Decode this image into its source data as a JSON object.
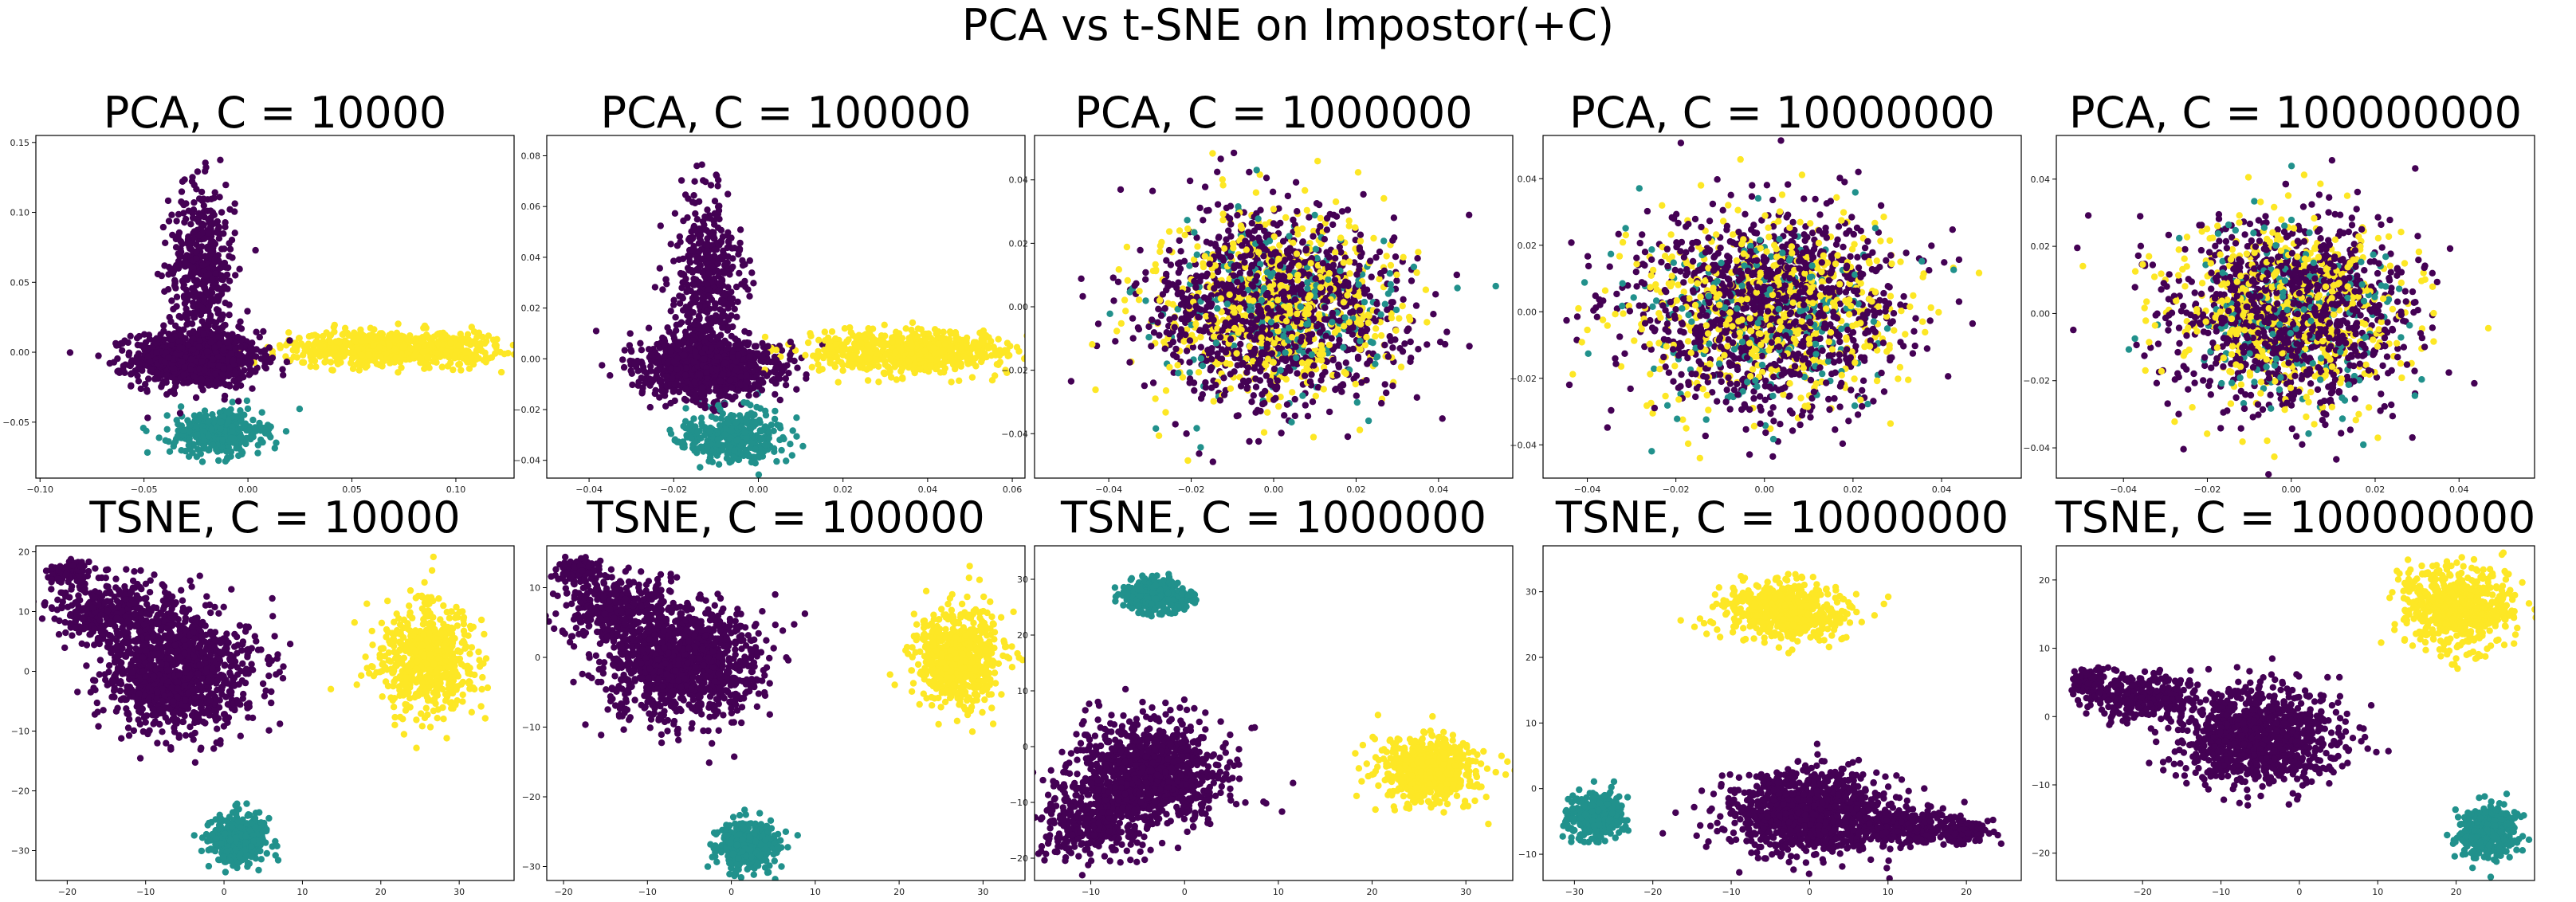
{
  "suptitle": "PCA vs t-SNE on Impostor(+C)",
  "colors": {
    "class0": "#440154",
    "class1": "#21918c",
    "class2": "#fde725"
  },
  "chart_data": [
    {
      "type": "scatter",
      "title": "PCA, C = 10000",
      "xlim": [
        -0.102,
        0.128
      ],
      "ylim": [
        -0.09,
        0.155
      ],
      "xticks": [
        -0.1,
        -0.05,
        0.0,
        0.05,
        0.1
      ],
      "yticks": [
        -0.05,
        0.0,
        0.05,
        0.1,
        0.15
      ],
      "xtick_labels": [
        "−0.10",
        "−0.05",
        "0.00",
        "0.05",
        "0.10"
      ],
      "ytick_labels": [
        "−0.05",
        "0.00",
        "0.05",
        "0.10",
        "0.15"
      ],
      "clusters": [
        {
          "class": 0,
          "n": 1000,
          "cx": -0.025,
          "cy": -0.005,
          "sx": 0.015,
          "sy": 0.01
        },
        {
          "class": 0,
          "n": 450,
          "cx": -0.022,
          "cy": 0.06,
          "sx": 0.008,
          "sy": 0.03
        },
        {
          "class": 2,
          "n": 750,
          "cx": 0.07,
          "cy": 0.003,
          "sx": 0.025,
          "sy": 0.006
        },
        {
          "class": 1,
          "n": 380,
          "cx": -0.015,
          "cy": -0.058,
          "sx": 0.011,
          "sy": 0.008
        }
      ]
    },
    {
      "type": "scatter",
      "title": "PCA, C = 100000",
      "xlim": [
        -0.05,
        0.063
      ],
      "ylim": [
        -0.047,
        0.088
      ],
      "xticks": [
        -0.04,
        -0.02,
        0.0,
        0.02,
        0.04,
        0.06
      ],
      "yticks": [
        -0.04,
        -0.02,
        0.0,
        0.02,
        0.04,
        0.06,
        0.08
      ],
      "xtick_labels": [
        "−0.04",
        "−0.02",
        "0.00",
        "0.02",
        "0.04",
        "0.06"
      ],
      "ytick_labels": [
        "−0.04",
        "−0.02",
        "0.00",
        "0.02",
        "0.04",
        "0.06",
        "0.08"
      ],
      "clusters": [
        {
          "class": 0,
          "n": 1000,
          "cx": -0.012,
          "cy": -0.003,
          "sx": 0.008,
          "sy": 0.006
        },
        {
          "class": 0,
          "n": 450,
          "cx": -0.012,
          "cy": 0.032,
          "sx": 0.004,
          "sy": 0.016
        },
        {
          "class": 2,
          "n": 750,
          "cx": 0.035,
          "cy": 0.003,
          "sx": 0.012,
          "sy": 0.004
        },
        {
          "class": 1,
          "n": 380,
          "cx": -0.006,
          "cy": -0.031,
          "sx": 0.006,
          "sy": 0.005
        }
      ]
    },
    {
      "type": "scatter",
      "title": "PCA, C = 1000000",
      "xlim": [
        -0.058,
        0.058
      ],
      "ylim": [
        -0.054,
        0.054
      ],
      "xticks": [
        -0.04,
        -0.02,
        0.0,
        0.02,
        0.04
      ],
      "yticks": [
        -0.04,
        -0.02,
        0.0,
        0.02,
        0.04
      ],
      "xtick_labels": [
        "−0.04",
        "−0.02",
        "0.00",
        "0.02",
        "0.04"
      ],
      "ytick_labels": [
        "−0.04",
        "−0.02",
        "0.00",
        "0.02",
        "0.04"
      ],
      "clusters": [
        {
          "class": 0,
          "n": 1100,
          "cx": 0,
          "cy": 0,
          "sx": 0.015,
          "sy": 0.015
        },
        {
          "class": 2,
          "n": 600,
          "cx": 0,
          "cy": 0,
          "sx": 0.015,
          "sy": 0.015
        },
        {
          "class": 1,
          "n": 250,
          "cx": 0,
          "cy": 0,
          "sx": 0.014,
          "sy": 0.014
        }
      ]
    },
    {
      "type": "scatter",
      "title": "PCA, C = 10000000",
      "xlim": [
        -0.05,
        0.058
      ],
      "ylim": [
        -0.05,
        0.053
      ],
      "xticks": [
        -0.04,
        -0.02,
        0.0,
        0.02,
        0.04
      ],
      "yticks": [
        -0.04,
        -0.02,
        0.0,
        0.02,
        0.04
      ],
      "xtick_labels": [
        "−0.04",
        "−0.02",
        "0.00",
        "0.02",
        "0.04"
      ],
      "ytick_labels": [
        "−0.04",
        "−0.02",
        "0.00",
        "0.02",
        "0.04"
      ],
      "clusters": [
        {
          "class": 0,
          "n": 1100,
          "cx": 0,
          "cy": 0,
          "sx": 0.015,
          "sy": 0.015
        },
        {
          "class": 2,
          "n": 600,
          "cx": 0,
          "cy": 0,
          "sx": 0.015,
          "sy": 0.015
        },
        {
          "class": 1,
          "n": 250,
          "cx": 0,
          "cy": 0,
          "sx": 0.014,
          "sy": 0.014
        }
      ]
    },
    {
      "type": "scatter",
      "title": "PCA, C = 100000000",
      "xlim": [
        -0.056,
        0.058
      ],
      "ylim": [
        -0.049,
        0.053
      ],
      "xticks": [
        -0.04,
        -0.02,
        0.0,
        0.02,
        0.04
      ],
      "yticks": [
        -0.04,
        -0.02,
        0.0,
        0.02,
        0.04
      ],
      "xtick_labels": [
        "−0.04",
        "−0.02",
        "0.00",
        "0.02",
        "0.04"
      ],
      "ytick_labels": [
        "−0.04",
        "−0.02",
        "0.00",
        "0.02",
        "0.04"
      ],
      "clusters": [
        {
          "class": 0,
          "n": 1100,
          "cx": 0,
          "cy": 0,
          "sx": 0.014,
          "sy": 0.014
        },
        {
          "class": 2,
          "n": 600,
          "cx": 0,
          "cy": 0,
          "sx": 0.014,
          "sy": 0.014
        },
        {
          "class": 1,
          "n": 250,
          "cx": 0,
          "cy": 0,
          "sx": 0.013,
          "sy": 0.013
        }
      ]
    },
    {
      "type": "scatter",
      "title": "TSNE, C = 10000",
      "xlim": [
        -24,
        37
      ],
      "ylim": [
        -35,
        21
      ],
      "xticks": [
        -20,
        -10,
        0,
        10,
        20,
        30
      ],
      "yticks": [
        -30,
        -20,
        -10,
        0,
        10,
        20
      ],
      "xtick_labels": [
        "−20",
        "−10",
        "0",
        "10",
        "20",
        "30"
      ],
      "ytick_labels": [
        "−30",
        "−20",
        "−10",
        "0",
        "10",
        "20"
      ],
      "clusters": [
        {
          "class": 0,
          "n": 1200,
          "cx": -6,
          "cy": 0,
          "sx": 4.5,
          "sy": 5
        },
        {
          "class": 0,
          "n": 350,
          "cx": -15,
          "cy": 10,
          "sx": 3.5,
          "sy": 3
        },
        {
          "class": 0,
          "n": 120,
          "cx": -20,
          "cy": 16.5,
          "sx": 1.2,
          "sy": 0.8
        },
        {
          "class": 2,
          "n": 650,
          "cx": 26,
          "cy": 2,
          "sx": 3,
          "sy": 4.5
        },
        {
          "class": 1,
          "n": 420,
          "cx": 2,
          "cy": -28,
          "sx": 1.8,
          "sy": 2
        }
      ]
    },
    {
      "type": "scatter",
      "title": "TSNE, C = 100000",
      "xlim": [
        -22,
        35
      ],
      "ylim": [
        -32,
        16
      ],
      "xticks": [
        -20,
        -10,
        0,
        10,
        20,
        30
      ],
      "yticks": [
        -30,
        -20,
        -10,
        0,
        10
      ],
      "xtick_labels": [
        "−20",
        "−10",
        "0",
        "10",
        "20",
        "30"
      ],
      "ytick_labels": [
        "−30",
        "−20",
        "−10",
        "0",
        "10"
      ],
      "clusters": [
        {
          "class": 0,
          "n": 1200,
          "cx": -6,
          "cy": -1,
          "sx": 4.5,
          "sy": 4
        },
        {
          "class": 0,
          "n": 350,
          "cx": -14,
          "cy": 7,
          "sx": 3.2,
          "sy": 2.5
        },
        {
          "class": 0,
          "n": 120,
          "cx": -18,
          "cy": 12.5,
          "sx": 1.2,
          "sy": 0.8
        },
        {
          "class": 2,
          "n": 650,
          "cx": 27,
          "cy": 0,
          "sx": 2.5,
          "sy": 3.5
        },
        {
          "class": 1,
          "n": 420,
          "cx": 2,
          "cy": -27,
          "sx": 1.6,
          "sy": 1.7
        }
      ]
    },
    {
      "type": "scatter",
      "title": "TSNE, C = 1000000",
      "xlim": [
        -16,
        35
      ],
      "ylim": [
        -24,
        36
      ],
      "xticks": [
        -10,
        0,
        10,
        20,
        30
      ],
      "yticks": [
        -20,
        -10,
        0,
        10,
        20,
        30
      ],
      "xtick_labels": [
        "−10",
        "0",
        "10",
        "20",
        "30"
      ],
      "ytick_labels": [
        "−20",
        "−10",
        "0",
        "10",
        "20",
        "30"
      ],
      "clusters": [
        {
          "class": 0,
          "n": 1100,
          "cx": -4,
          "cy": -5,
          "sx": 4,
          "sy": 4.5
        },
        {
          "class": 0,
          "n": 300,
          "cx": -10,
          "cy": -14,
          "sx": 2.5,
          "sy": 3
        },
        {
          "class": 1,
          "n": 420,
          "cx": -3,
          "cy": 27,
          "sx": 1.6,
          "sy": 1.5
        },
        {
          "class": 2,
          "n": 650,
          "cx": 26,
          "cy": -4,
          "sx": 2.5,
          "sy": 3
        }
      ]
    },
    {
      "type": "scatter",
      "title": "TSNE, C = 10000000",
      "xlim": [
        -34,
        27
      ],
      "ylim": [
        -14,
        37
      ],
      "xticks": [
        -30,
        -20,
        -10,
        0,
        10,
        20
      ],
      "yticks": [
        -10,
        0,
        10,
        20,
        30
      ],
      "xtick_labels": [
        "−30",
        "−20",
        "−10",
        "0",
        "10",
        "20"
      ],
      "ytick_labels": [
        "−10",
        "0",
        "10",
        "20",
        "30"
      ],
      "clusters": [
        {
          "class": 0,
          "n": 1100,
          "cx": 0,
          "cy": -4,
          "sx": 5,
          "sy": 3
        },
        {
          "class": 0,
          "n": 250,
          "cx": 13,
          "cy": -6,
          "sx": 4,
          "sy": 1.3
        },
        {
          "class": 0,
          "n": 100,
          "cx": 20,
          "cy": -6.5,
          "sx": 1.5,
          "sy": 0.8
        },
        {
          "class": 2,
          "n": 600,
          "cx": -3,
          "cy": 27,
          "sx": 4,
          "sy": 2.2
        },
        {
          "class": 1,
          "n": 420,
          "cx": -27,
          "cy": -4,
          "sx": 1.7,
          "sy": 1.6
        }
      ]
    },
    {
      "type": "scatter",
      "title": "TSNE, C = 100000000",
      "xlim": [
        -31,
        30
      ],
      "ylim": [
        -24,
        25
      ],
      "xticks": [
        -20,
        -10,
        0,
        10,
        20
      ],
      "yticks": [
        -20,
        -10,
        0,
        10,
        20
      ],
      "xtick_labels": [
        "−20",
        "−10",
        "0",
        "10",
        "20"
      ],
      "ytick_labels": [
        "−20",
        "−10",
        "0",
        "10",
        "20"
      ],
      "clusters": [
        {
          "class": 0,
          "n": 1100,
          "cx": -5,
          "cy": -3,
          "sx": 5,
          "sy": 3.5
        },
        {
          "class": 0,
          "n": 300,
          "cx": -20,
          "cy": 3,
          "sx": 3.5,
          "sy": 1.8
        },
        {
          "class": 0,
          "n": 80,
          "cx": -27,
          "cy": 5,
          "sx": 1,
          "sy": 0.8
        },
        {
          "class": 2,
          "n": 650,
          "cx": 20,
          "cy": 16,
          "sx": 3.5,
          "sy": 3
        },
        {
          "class": 1,
          "n": 420,
          "cx": 24,
          "cy": -17,
          "sx": 1.8,
          "sy": 1.8
        }
      ]
    }
  ]
}
